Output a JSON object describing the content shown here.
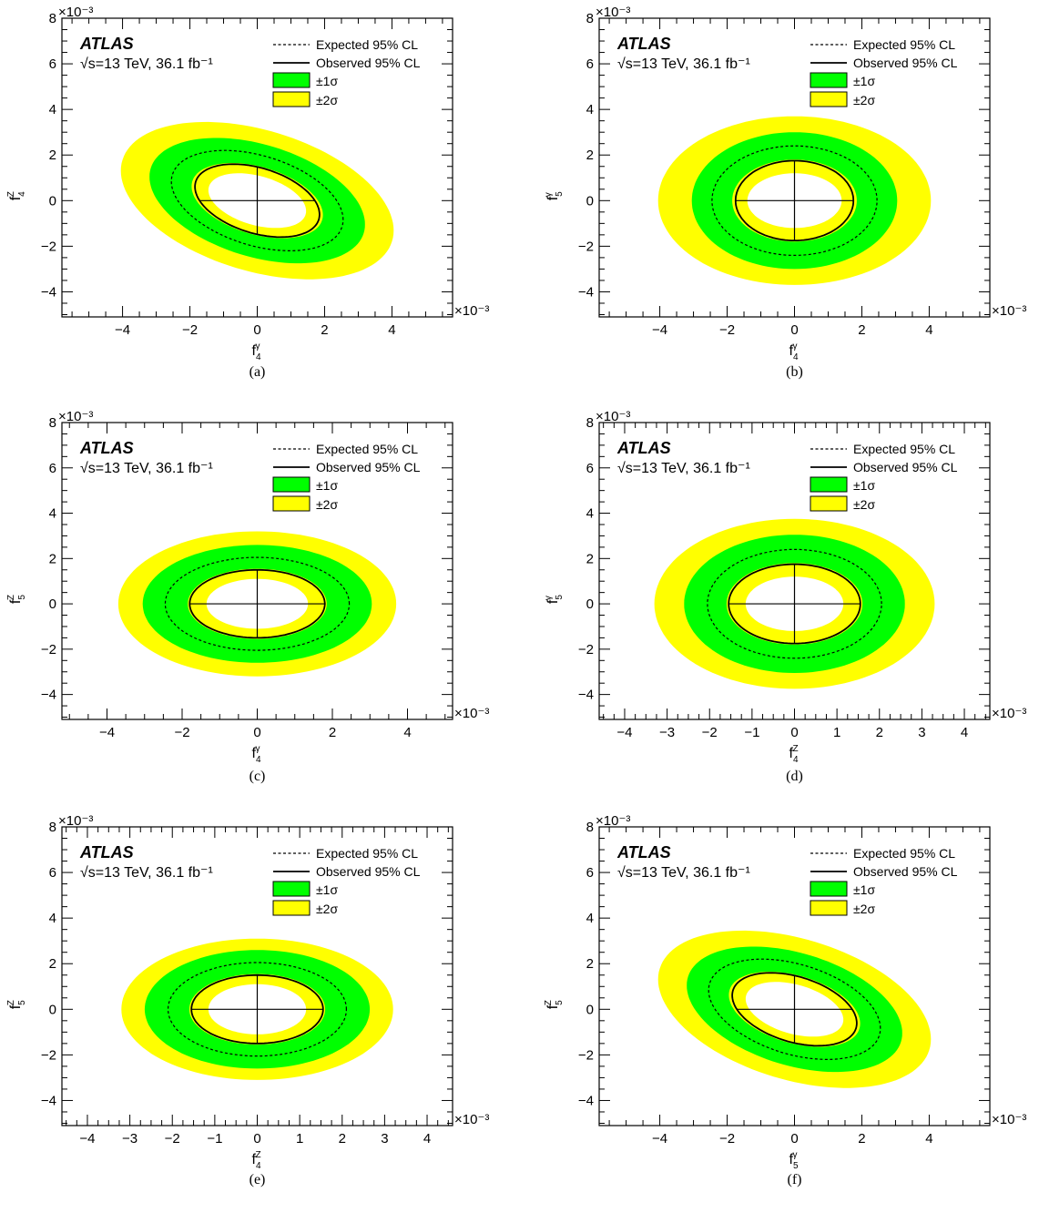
{
  "figure": {
    "panels": [
      "a",
      "b",
      "c",
      "d",
      "e",
      "f"
    ]
  },
  "chart_data": [
    {
      "panel": "a",
      "caption": "(a)",
      "type": "contour",
      "experiment": "ATLAS",
      "lumi_text": "√s=13 TeV, 36.1 fb⁻¹",
      "legend": [
        "Expected 95% CL",
        "Observed 95% CL",
        "±1σ",
        "±2σ"
      ],
      "xlabel": "f",
      "xlabel_sub": "4",
      "xlabel_sup": "γ",
      "ylabel": "f",
      "ylabel_sub": "4",
      "ylabel_sup": "Z",
      "xlim": [
        -5.8,
        5.8
      ],
      "ylim": [
        -5.1,
        8.0
      ],
      "xticks": [
        -4,
        -2,
        0,
        2,
        4
      ],
      "yticks": [
        -4,
        -2,
        0,
        2,
        4,
        6,
        8
      ],
      "xminor": 0.5,
      "yminor": 0.5,
      "exponent_label": "×10⁻³",
      "observed": {
        "rx": 1.85,
        "ry": 1.6,
        "rho": -0.38
      },
      "expected": {
        "rx": 2.55,
        "ry": 2.2,
        "rho": -0.38
      },
      "sigma1_outer": {
        "rx": 3.2,
        "ry": 2.75,
        "rho": -0.38
      },
      "sigma1_inner": {
        "rx": 1.95,
        "ry": 1.65,
        "rho": -0.38
      },
      "sigma2_outer": {
        "rx": 4.05,
        "ry": 3.45,
        "rho": -0.38
      },
      "sigma2_inner": {
        "rx": 1.45,
        "ry": 1.2,
        "rho": -0.38
      }
    },
    {
      "panel": "b",
      "caption": "(b)",
      "type": "contour",
      "experiment": "ATLAS",
      "lumi_text": "√s=13 TeV, 36.1 fb⁻¹",
      "legend": [
        "Expected 95% CL",
        "Observed 95% CL",
        "±1σ",
        "±2σ"
      ],
      "xlabel": "f",
      "xlabel_sub": "4",
      "xlabel_sup": "γ",
      "ylabel": "f",
      "ylabel_sub": "5",
      "ylabel_sup": "γ",
      "xlim": [
        -5.8,
        5.8
      ],
      "ylim": [
        -5.1,
        8.0
      ],
      "xticks": [
        -4,
        -2,
        0,
        2,
        4
      ],
      "yticks": [
        -4,
        -2,
        0,
        2,
        4,
        6,
        8
      ],
      "xminor": 0.5,
      "yminor": 0.5,
      "exponent_label": "×10⁻³",
      "observed": {
        "rx": 1.75,
        "ry": 1.75,
        "rho": 0
      },
      "expected": {
        "rx": 2.45,
        "ry": 2.4,
        "rho": 0
      },
      "sigma1_outer": {
        "rx": 3.05,
        "ry": 3.0,
        "rho": 0
      },
      "sigma1_inner": {
        "rx": 1.85,
        "ry": 1.8,
        "rho": 0
      },
      "sigma2_outer": {
        "rx": 4.05,
        "ry": 3.7,
        "rho": 0
      },
      "sigma2_inner": {
        "rx": 1.4,
        "ry": 1.2,
        "rho": 0
      }
    },
    {
      "panel": "c",
      "caption": "(c)",
      "type": "contour",
      "experiment": "ATLAS",
      "lumi_text": "√s=13 TeV, 36.1 fb⁻¹",
      "legend": [
        "Expected 95% CL",
        "Observed 95% CL",
        "±1σ",
        "±2σ"
      ],
      "xlabel": "f",
      "xlabel_sub": "4",
      "xlabel_sup": "γ",
      "ylabel": "f",
      "ylabel_sub": "5",
      "ylabel_sup": "Z",
      "xlim": [
        -5.2,
        5.2
      ],
      "ylim": [
        -5.1,
        8.0
      ],
      "xticks": [
        -4,
        -2,
        0,
        2,
        4
      ],
      "yticks": [
        -4,
        -2,
        0,
        2,
        4,
        6,
        8
      ],
      "xminor": 0.5,
      "yminor": 0.5,
      "exponent_label": "×10⁻³",
      "observed": {
        "rx": 1.8,
        "ry": 1.5,
        "rho": 0
      },
      "expected": {
        "rx": 2.45,
        "ry": 2.05,
        "rho": 0
      },
      "sigma1_outer": {
        "rx": 3.05,
        "ry": 2.6,
        "rho": 0
      },
      "sigma1_inner": {
        "rx": 1.85,
        "ry": 1.55,
        "rho": 0
      },
      "sigma2_outer": {
        "rx": 3.7,
        "ry": 3.2,
        "rho": 0
      },
      "sigma2_inner": {
        "rx": 1.35,
        "ry": 1.1,
        "rho": 0
      }
    },
    {
      "panel": "d",
      "caption": "(d)",
      "type": "contour",
      "experiment": "ATLAS",
      "lumi_text": "√s=13 TeV, 36.1 fb⁻¹",
      "legend": [
        "Expected 95% CL",
        "Observed 95% CL",
        "±1σ",
        "±2σ"
      ],
      "xlabel": "f",
      "xlabel_sub": "4",
      "xlabel_sup": "Z",
      "ylabel": "f",
      "ylabel_sub": "5",
      "ylabel_sup": "γ",
      "xlim": [
        -4.6,
        4.6
      ],
      "ylim": [
        -5.1,
        8.0
      ],
      "xticks": [
        -4,
        -3,
        -2,
        -1,
        0,
        1,
        2,
        3,
        4
      ],
      "yticks": [
        -4,
        -2,
        0,
        2,
        4,
        6,
        8
      ],
      "xminor": 0.25,
      "yminor": 0.5,
      "exponent_label": "×10⁻³",
      "observed": {
        "rx": 1.55,
        "ry": 1.75,
        "rho": 0
      },
      "expected": {
        "rx": 2.05,
        "ry": 2.4,
        "rho": 0
      },
      "sigma1_outer": {
        "rx": 2.6,
        "ry": 3.05,
        "rho": 0
      },
      "sigma1_inner": {
        "rx": 1.6,
        "ry": 1.8,
        "rho": 0
      },
      "sigma2_outer": {
        "rx": 3.3,
        "ry": 3.75,
        "rho": 0
      },
      "sigma2_inner": {
        "rx": 1.15,
        "ry": 1.2,
        "rho": 0
      }
    },
    {
      "panel": "e",
      "caption": "(e)",
      "type": "contour",
      "experiment": "ATLAS",
      "lumi_text": "√s=13 TeV, 36.1 fb⁻¹",
      "legend": [
        "Expected 95% CL",
        "Observed 95% CL",
        "±1σ",
        "±2σ"
      ],
      "xlabel": "f",
      "xlabel_sub": "4",
      "xlabel_sup": "Z",
      "ylabel": "f",
      "ylabel_sub": "5",
      "ylabel_sup": "Z",
      "xlim": [
        -4.6,
        4.6
      ],
      "ylim": [
        -5.1,
        8.0
      ],
      "xticks": [
        -4,
        -3,
        -2,
        -1,
        0,
        1,
        2,
        3,
        4
      ],
      "yticks": [
        -4,
        -2,
        0,
        2,
        4,
        6,
        8
      ],
      "xminor": 0.25,
      "yminor": 0.5,
      "exponent_label": "×10⁻³",
      "observed": {
        "rx": 1.55,
        "ry": 1.5,
        "rho": 0
      },
      "expected": {
        "rx": 2.1,
        "ry": 2.05,
        "rho": 0
      },
      "sigma1_outer": {
        "rx": 2.65,
        "ry": 2.6,
        "rho": 0
      },
      "sigma1_inner": {
        "rx": 1.6,
        "ry": 1.55,
        "rho": 0
      },
      "sigma2_outer": {
        "rx": 3.2,
        "ry": 3.1,
        "rho": 0
      },
      "sigma2_inner": {
        "rx": 1.15,
        "ry": 1.1,
        "rho": 0
      }
    },
    {
      "panel": "f",
      "caption": "(f)",
      "type": "contour",
      "experiment": "ATLAS",
      "lumi_text": "√s=13 TeV, 36.1 fb⁻¹",
      "legend": [
        "Expected 95% CL",
        "Observed 95% CL",
        "±1σ",
        "±2σ"
      ],
      "xlabel": "f",
      "xlabel_sub": "5",
      "xlabel_sup": "γ",
      "ylabel": "f",
      "ylabel_sub": "5",
      "ylabel_sup": "Z",
      "xlim": [
        -5.8,
        5.8
      ],
      "ylim": [
        -5.1,
        8.0
      ],
      "xticks": [
        -4,
        -2,
        0,
        2,
        4
      ],
      "yticks": [
        -4,
        -2,
        0,
        2,
        4,
        6,
        8
      ],
      "xminor": 0.5,
      "yminor": 0.5,
      "exponent_label": "×10⁻³",
      "observed": {
        "rx": 1.85,
        "ry": 1.6,
        "rho": -0.38
      },
      "expected": {
        "rx": 2.55,
        "ry": 2.2,
        "rho": -0.38
      },
      "sigma1_outer": {
        "rx": 3.2,
        "ry": 2.75,
        "rho": -0.38
      },
      "sigma1_inner": {
        "rx": 1.95,
        "ry": 1.65,
        "rho": -0.38
      },
      "sigma2_outer": {
        "rx": 4.05,
        "ry": 3.45,
        "rho": -0.38
      },
      "sigma2_inner": {
        "rx": 1.45,
        "ry": 1.2,
        "rho": -0.38
      }
    }
  ],
  "colors": {
    "sigma1": "#00ff00",
    "sigma2": "#ffff00",
    "line": "#000000"
  }
}
